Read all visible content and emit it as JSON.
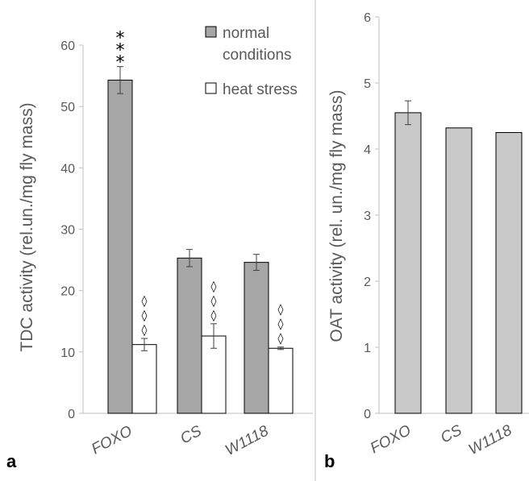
{
  "colors": {
    "normal": "#a6a6a6",
    "heat": "#ffffff",
    "oat": "#c9c9c9",
    "edge": "#000000",
    "axis": "#bfbfbf",
    "text": "#595959"
  },
  "chart_data": [
    {
      "panel_label": "a",
      "type": "bar",
      "ylabel": "TDC activity (rel.un./mg fly mass)",
      "ylim": [
        0,
        60
      ],
      "yticks": [
        "0",
        "10",
        "20",
        "30",
        "40",
        "50",
        "60"
      ],
      "categories": [
        "FOXO",
        "CS",
        "W1118"
      ],
      "legend_placement": "top-right",
      "series": [
        {
          "name": "normal conditions",
          "values": [
            54.3,
            25.3,
            24.6
          ],
          "errors": [
            2.2,
            1.4,
            1.3
          ],
          "annotations": [
            "***",
            "",
            ""
          ]
        },
        {
          "name": "heat stress",
          "values": [
            11.2,
            12.6,
            10.6
          ],
          "errors": [
            1.0,
            2.0,
            0.2
          ],
          "annotations": [
            "◊◊◊",
            "◊◊◊",
            "◊◊◊"
          ]
        }
      ]
    },
    {
      "panel_label": "b",
      "type": "bar",
      "ylabel": "OAT activity (rel. un./mg fly mass)",
      "ylim": [
        0,
        6
      ],
      "yticks": [
        "0",
        "1",
        "2",
        "3",
        "4",
        "5",
        "6"
      ],
      "categories": [
        "FOXO",
        "CS",
        "W1118"
      ],
      "series": [
        {
          "values": [
            4.55,
            4.32,
            4.25
          ],
          "errors": [
            0.18,
            0,
            0
          ]
        }
      ]
    }
  ]
}
